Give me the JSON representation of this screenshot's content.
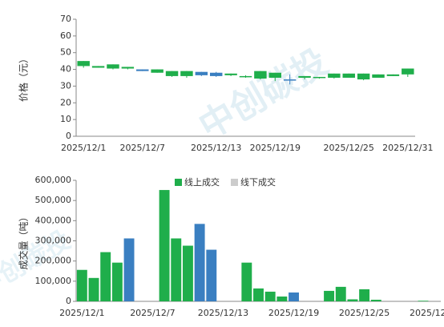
{
  "watermark": "中创碳投",
  "chart_data": [
    {
      "type": "candlestick",
      "y_label": "价格（元）",
      "categories": [
        "2025/12/1",
        null,
        null,
        null,
        "2025/12/7",
        null,
        null,
        null,
        null,
        "2025/12/13",
        null,
        null,
        null,
        "2025/12/19",
        null,
        null,
        null,
        null,
        "2025/12/25",
        null,
        null,
        null,
        "2025/12/31"
      ],
      "open": [
        45,
        42,
        43,
        41.5,
        40,
        40,
        39,
        39,
        38.5,
        38,
        37.5,
        36,
        39,
        38,
        34,
        36,
        35.5,
        37.5,
        37.5,
        37.5,
        37,
        37,
        40.5
      ],
      "close": [
        42,
        41,
        40.5,
        40.5,
        39,
        38,
        36,
        36,
        36.5,
        36,
        36.5,
        35.8,
        34.5,
        35,
        34,
        35,
        35,
        35,
        35,
        34,
        35,
        36,
        37
      ],
      "high": [
        45,
        42,
        43,
        41.5,
        40,
        40,
        39,
        39,
        38.5,
        38.5,
        37.5,
        36.5,
        39,
        38,
        37,
        36,
        35.5,
        37.5,
        37.5,
        37.5,
        37,
        37,
        40.5
      ],
      "low": [
        41,
        41,
        40,
        40,
        39,
        38,
        35.5,
        35,
        36,
        35.5,
        36,
        35,
        34,
        33,
        31,
        34,
        34.5,
        34.5,
        35,
        33.5,
        35,
        36,
        35.5
      ],
      "colors": [
        "#1fae4b",
        "#1fae4b",
        "#1fae4b",
        "#1fae4b",
        "#3a7fc1",
        "#1fae4b",
        "#1fae4b",
        "#1fae4b",
        "#3a7fc1",
        "#3a7fc1",
        "#1fae4b",
        "#1fae4b",
        "#1fae4b",
        "#1fae4b",
        "#3a7fc1",
        "#1fae4b",
        "#1fae4b",
        "#1fae4b",
        "#1fae4b",
        "#1fae4b",
        "#1fae4b",
        "#1fae4b",
        "#1fae4b"
      ],
      "ylim": [
        0,
        70
      ],
      "yticks": [
        0,
        10,
        20,
        30,
        40,
        50,
        60,
        70
      ]
    },
    {
      "type": "bar",
      "y_label": "成交量（吨）",
      "categories": [
        "2025/12/1",
        null,
        null,
        null,
        null,
        null,
        "2025/12/7",
        null,
        null,
        null,
        null,
        null,
        "2025/12/13",
        null,
        null,
        null,
        null,
        null,
        "2025/12/19",
        null,
        null,
        null,
        null,
        null,
        "2025/12/25",
        null,
        null,
        null,
        null,
        null,
        "2025/12/31"
      ],
      "series": [
        {
          "name": "线上成交",
          "color": "#1fae4b",
          "legend_color": "#1fae4b",
          "values": [
            156000,
            116000,
            244000,
            192000,
            null,
            null,
            null,
            552000,
            312000,
            276000,
            null,
            null,
            null,
            null,
            192000,
            64000,
            48000,
            24000,
            null,
            null,
            null,
            52000,
            72000,
            10000,
            60000,
            8000,
            null,
            null,
            null,
            3000,
            null
          ]
        },
        {
          "name": "线下成交",
          "color": "#3a7fc1",
          "legend_color": "#cccccc",
          "values": [
            null,
            null,
            null,
            null,
            312000,
            null,
            null,
            null,
            null,
            null,
            384000,
            256000,
            null,
            null,
            null,
            null,
            null,
            null,
            44000,
            null,
            null,
            null,
            null,
            null,
            null,
            null,
            null,
            null,
            null,
            null,
            null
          ]
        }
      ],
      "ylim": [
        0,
        600000
      ],
      "yticks": [
        0,
        {
          "value": 100000,
          "label": "100,000"
        },
        {
          "value": 200000,
          "label": "200,000"
        },
        {
          "value": 300000,
          "label": "300,000"
        },
        {
          "value": 400000,
          "label": "400,000"
        },
        {
          "value": 500000,
          "label": "500,000"
        },
        {
          "value": 600000,
          "label": "600,000"
        }
      ]
    }
  ]
}
